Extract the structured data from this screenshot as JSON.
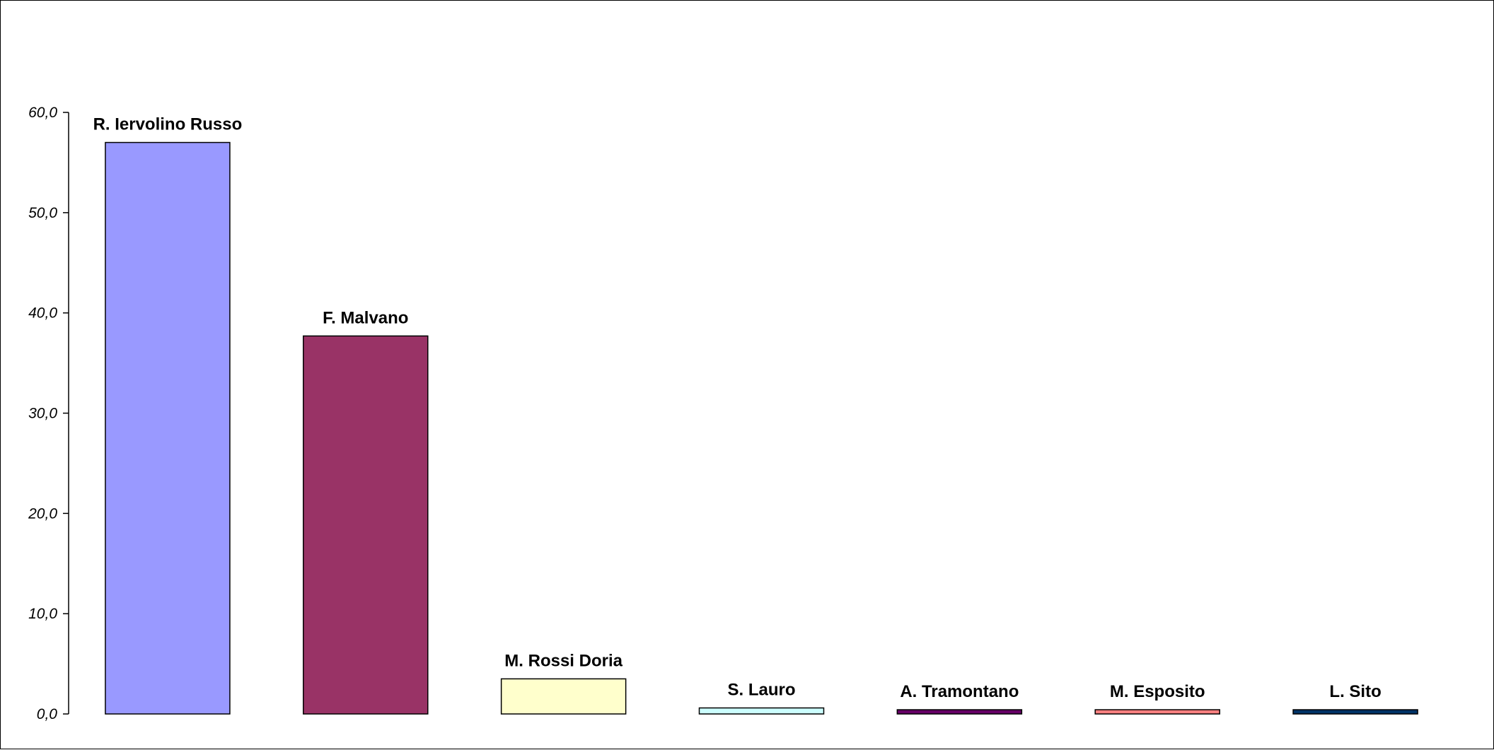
{
  "chart_data": {
    "type": "bar",
    "categories": [
      "R. Iervolino Russo",
      "F. Malvano",
      "M. Rossi Doria",
      "S. Lauro",
      "A. Tramontano",
      "M. Esposito",
      "L. Sito"
    ],
    "values": [
      57.0,
      37.7,
      3.5,
      0.6,
      0.4,
      0.4,
      0.3
    ],
    "colors": [
      "#9999ff",
      "#993366",
      "#ffffcc",
      "#ccffff",
      "#660066",
      "#ff8080",
      "#003366"
    ],
    "ylim": [
      0,
      60
    ],
    "yticks": [
      0,
      10,
      20,
      30,
      40,
      50,
      60
    ],
    "ytick_labels": [
      "0,0",
      "10,0",
      "20,0",
      "30,0",
      "40,0",
      "50,0",
      "60,0"
    ],
    "title": "",
    "xlabel": "",
    "ylabel": "",
    "grid": false,
    "legend": "none"
  }
}
